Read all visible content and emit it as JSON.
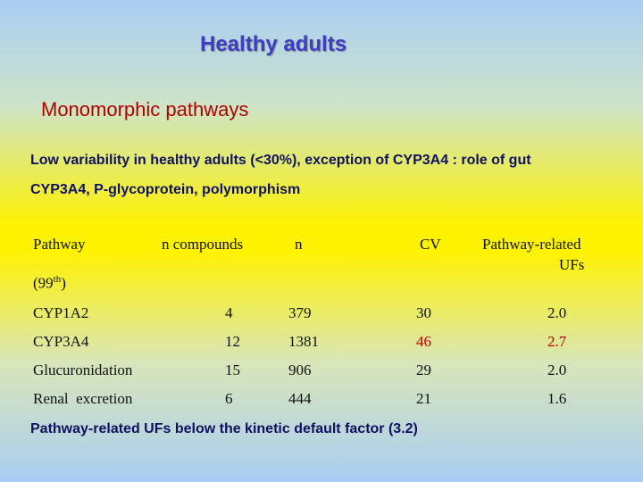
{
  "title": "Healthy adults",
  "subtitle": "Monomorphic pathways",
  "paragraph": {
    "line1": "Low variability in healthy adults (<30%), exception of CYP3A4 : role of gut",
    "line2": "CYP3A4, P-glycoprotein, polymorphism"
  },
  "table": {
    "headers": {
      "pathway": "Pathway",
      "percentile_base": "(99",
      "percentile_sup": "th",
      "percentile_close": ")",
      "n_compounds": "n compounds",
      "n": "n",
      "cv": "CV",
      "ufs_line1": "Pathway-related",
      "ufs_line2": "UFs"
    },
    "rows": [
      {
        "pathway": "CYP1A2",
        "n_compounds": "4",
        "n": "379",
        "cv": "30",
        "uf": "2.0",
        "highlight": false
      },
      {
        "pathway": "CYP3A4",
        "n_compounds": "12",
        "n": "1381",
        "cv": "46",
        "uf": "2.7",
        "highlight": true
      },
      {
        "pathway": "Glucuronidation",
        "n_compounds": "15",
        "n": "906",
        "cv": "29",
        "uf": "2.0",
        "highlight": false
      },
      {
        "pathway": "Renal  excretion",
        "n_compounds": "6",
        "n": "444",
        "cv": "21",
        "uf": "1.6",
        "highlight": false
      }
    ]
  },
  "footer": "Pathway-related UFs below the kinetic default factor (3.2)",
  "colors": {
    "title": "#3b3fc6",
    "subtitle": "#b00000",
    "highlight": "#c00000",
    "background_top": "#a9cdf3",
    "background_middle": "#fff200"
  }
}
